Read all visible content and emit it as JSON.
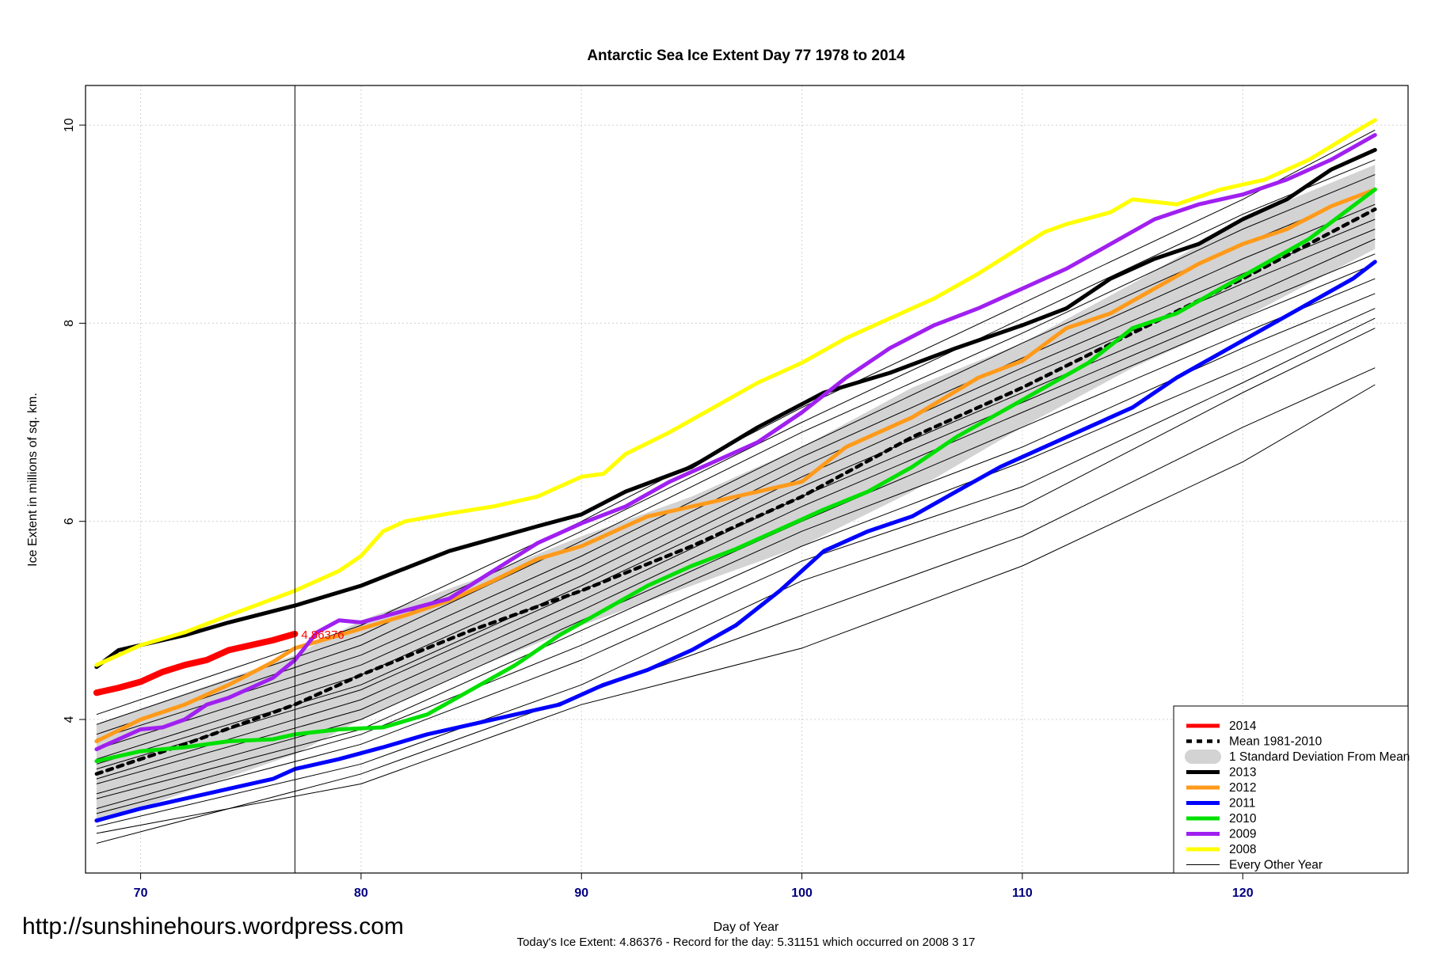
{
  "watermark": "http://sunshinehours.wordpress.com",
  "chart_data": {
    "type": "line",
    "title": "Antarctic Sea Ice Extent Day 77 1978 to 2014",
    "xlabel": "Day of Year",
    "ylabel": "Ice Extent in millions of sq. km.",
    "xlim": [
      67.5,
      127.5
    ],
    "ylim": [
      2.45,
      10.4
    ],
    "xticks": [
      "70",
      "80",
      "90",
      "100",
      "110",
      "120"
    ],
    "yticks": [
      "4",
      "6",
      "8",
      "10"
    ],
    "grid": true,
    "legend_position": "bottom-right",
    "current_day_marker": 77,
    "today_label": "4.86376",
    "footnote": "Today's Ice Extent: 4.86376  - Record for the day: 5.31151 which occurred on 2008 3 17",
    "legend": [
      {
        "label": "2014",
        "color": "#ff0000",
        "style": "thick"
      },
      {
        "label": "Mean 1981-2010",
        "color": "#000000",
        "style": "dashed"
      },
      {
        "label": "1 Standard Deviation From Mean",
        "color": "#d3d3d3",
        "style": "band"
      },
      {
        "label": "2013",
        "color": "#000000",
        "style": "thick"
      },
      {
        "label": "2012",
        "color": "#ff9a1a",
        "style": "thick"
      },
      {
        "label": "2011",
        "color": "#0000ff",
        "style": "thick"
      },
      {
        "label": "2010",
        "color": "#00e000",
        "style": "thick"
      },
      {
        "label": "2009",
        "color": "#a020f0",
        "style": "thick"
      },
      {
        "label": "2008",
        "color": "#ffff00",
        "style": "thick"
      },
      {
        "label": "Every Other Year",
        "color": "#000000",
        "style": "thin"
      }
    ],
    "std_band": {
      "x": [
        68,
        77,
        80,
        85,
        90,
        95,
        100,
        105,
        110,
        115,
        120,
        126
      ],
      "lower": [
        2.95,
        3.65,
        4.0,
        4.5,
        4.95,
        5.35,
        5.75,
        6.3,
        6.95,
        7.55,
        8.05,
        8.75
      ],
      "upper": [
        3.95,
        4.65,
        5.0,
        5.4,
        5.85,
        6.25,
        6.75,
        7.35,
        7.8,
        8.4,
        9.05,
        9.6
      ]
    },
    "series": [
      {
        "name": "Mean 1981-2010",
        "color": "#000000",
        "style": "dashed",
        "x": [
          68,
          72,
          77,
          80,
          85,
          90,
          95,
          100,
          105,
          110,
          115,
          120,
          126
        ],
        "y": [
          3.45,
          3.75,
          4.15,
          4.45,
          4.9,
          5.3,
          5.75,
          6.25,
          6.85,
          7.35,
          7.9,
          8.45,
          9.15
        ]
      },
      {
        "name": "2013",
        "color": "#000000",
        "style": "thick",
        "x": [
          68,
          69,
          70,
          72,
          74,
          77,
          80,
          84,
          88,
          90,
          92,
          95,
          98,
          101,
          104,
          107,
          110,
          112,
          114,
          116,
          118,
          120,
          122,
          124,
          126
        ],
        "y": [
          4.53,
          4.7,
          4.75,
          4.85,
          4.98,
          5.15,
          5.35,
          5.7,
          5.95,
          6.07,
          6.3,
          6.55,
          6.95,
          7.3,
          7.5,
          7.75,
          7.98,
          8.15,
          8.45,
          8.65,
          8.8,
          9.05,
          9.25,
          9.55,
          9.75
        ]
      },
      {
        "name": "2012",
        "color": "#ff9a1a",
        "style": "thick",
        "x": [
          68,
          70,
          72,
          74,
          76,
          77,
          79,
          82,
          84,
          86,
          88,
          90,
          93,
          96,
          100,
          102,
          105,
          108,
          110,
          112,
          114,
          116,
          118,
          120,
          122,
          124,
          126
        ],
        "y": [
          3.78,
          4.0,
          4.15,
          4.35,
          4.58,
          4.72,
          4.85,
          5.05,
          5.2,
          5.4,
          5.62,
          5.75,
          6.05,
          6.2,
          6.4,
          6.75,
          7.05,
          7.45,
          7.62,
          7.95,
          8.1,
          8.35,
          8.6,
          8.8,
          8.95,
          9.18,
          9.35
        ]
      },
      {
        "name": "2011",
        "color": "#0000ff",
        "style": "thick",
        "x": [
          68,
          70,
          72,
          74,
          76,
          77,
          79,
          81,
          83,
          85,
          87,
          89,
          91,
          93,
          95,
          97,
          99,
          101,
          103,
          105,
          107,
          109,
          111,
          113,
          115,
          117,
          119,
          121,
          123,
          125,
          126
        ],
        "y": [
          2.98,
          3.1,
          3.2,
          3.3,
          3.4,
          3.5,
          3.6,
          3.72,
          3.85,
          3.95,
          4.05,
          4.15,
          4.35,
          4.5,
          4.7,
          4.95,
          5.3,
          5.7,
          5.9,
          6.05,
          6.3,
          6.55,
          6.75,
          6.95,
          7.15,
          7.45,
          7.7,
          7.95,
          8.2,
          8.45,
          8.62
        ]
      },
      {
        "name": "2010",
        "color": "#00e000",
        "style": "thick",
        "x": [
          68,
          70,
          72,
          74,
          76,
          77,
          79,
          81,
          83,
          85,
          87,
          89,
          91,
          93,
          95,
          97,
          99,
          101,
          103,
          105,
          107,
          109,
          111,
          113,
          115,
          117,
          119,
          121,
          123,
          126
        ],
        "y": [
          3.58,
          3.68,
          3.72,
          3.78,
          3.8,
          3.85,
          3.9,
          3.92,
          4.05,
          4.3,
          4.55,
          4.85,
          5.1,
          5.35,
          5.55,
          5.72,
          5.92,
          6.12,
          6.3,
          6.55,
          6.85,
          7.1,
          7.35,
          7.6,
          7.95,
          8.1,
          8.35,
          8.6,
          8.85,
          9.35
        ]
      },
      {
        "name": "2009",
        "color": "#a020f0",
        "style": "thick",
        "x": [
          68,
          70,
          71,
          72,
          73,
          74,
          75,
          76,
          77,
          78,
          79,
          80,
          82,
          84,
          86,
          88,
          90,
          92,
          94,
          96,
          98,
          100,
          102,
          104,
          106,
          108,
          110,
          112,
          114,
          116,
          118,
          120,
          122,
          124,
          126
        ],
        "y": [
          3.7,
          3.9,
          3.92,
          4.0,
          4.15,
          4.22,
          4.32,
          4.42,
          4.6,
          4.88,
          5.0,
          4.98,
          5.1,
          5.22,
          5.5,
          5.78,
          5.98,
          6.15,
          6.4,
          6.6,
          6.8,
          7.1,
          7.45,
          7.75,
          7.98,
          8.15,
          8.35,
          8.55,
          8.8,
          9.05,
          9.2,
          9.3,
          9.45,
          9.65,
          9.9
        ]
      },
      {
        "name": "2008",
        "color": "#ffff00",
        "style": "thick",
        "x": [
          68,
          70,
          72,
          74,
          77,
          79,
          80,
          81,
          82,
          84,
          86,
          88,
          90,
          91,
          92,
          94,
          96,
          98,
          100,
          102,
          104,
          106,
          108,
          110,
          111,
          112,
          114,
          115,
          117,
          119,
          121,
          123,
          125,
          126
        ],
        "y": [
          4.55,
          4.75,
          4.88,
          5.05,
          5.3,
          5.5,
          5.65,
          5.9,
          6.0,
          6.08,
          6.15,
          6.25,
          6.45,
          6.48,
          6.68,
          6.9,
          7.15,
          7.4,
          7.6,
          7.85,
          8.05,
          8.25,
          8.5,
          8.78,
          8.92,
          9.0,
          9.12,
          9.25,
          9.2,
          9.35,
          9.45,
          9.65,
          9.92,
          10.05
        ]
      },
      {
        "name": "2014",
        "color": "#ff0000",
        "style": "thick",
        "x": [
          68,
          69,
          70,
          71,
          72,
          73,
          74,
          75,
          76,
          77
        ],
        "y": [
          4.27,
          4.32,
          4.38,
          4.48,
          4.55,
          4.6,
          4.7,
          4.75,
          4.8,
          4.86376
        ]
      }
    ],
    "other_years": [
      {
        "x": [
          68,
          80,
          90,
          100,
          110,
          120,
          126
        ],
        "y": [
          2.85,
          3.35,
          4.15,
          4.72,
          5.55,
          6.6,
          7.38
        ]
      },
      {
        "x": [
          68,
          80,
          90,
          100,
          110,
          120,
          126
        ],
        "y": [
          2.75,
          3.45,
          4.25,
          5.05,
          5.85,
          6.95,
          7.55
        ]
      },
      {
        "x": [
          68,
          80,
          90,
          100,
          110,
          120,
          126
        ],
        "y": [
          2.92,
          3.55,
          4.35,
          5.4,
          6.15,
          7.3,
          7.95
        ]
      },
      {
        "x": [
          68,
          80,
          90,
          100,
          110,
          120,
          126
        ],
        "y": [
          3.05,
          3.75,
          4.6,
          5.6,
          6.35,
          7.4,
          8.05
        ]
      },
      {
        "x": [
          68,
          80,
          90,
          100,
          110,
          120,
          126
        ],
        "y": [
          3.1,
          3.85,
          4.75,
          5.75,
          6.6,
          7.55,
          8.15
        ]
      },
      {
        "x": [
          68,
          80,
          90,
          100,
          110,
          120,
          126
        ],
        "y": [
          3.2,
          3.9,
          4.9,
          5.9,
          6.75,
          7.75,
          8.3
        ]
      },
      {
        "x": [
          68,
          80,
          90,
          100,
          110,
          120,
          126
        ],
        "y": [
          3.25,
          4.0,
          5.0,
          6.0,
          6.95,
          7.9,
          8.45
        ]
      },
      {
        "x": [
          68,
          80,
          90,
          100,
          110,
          120,
          126
        ],
        "y": [
          3.35,
          4.1,
          5.1,
          6.15,
          7.1,
          8.05,
          8.6
        ]
      },
      {
        "x": [
          68,
          80,
          90,
          100,
          110,
          120,
          126
        ],
        "y": [
          3.4,
          4.2,
          5.2,
          6.25,
          7.2,
          8.15,
          8.7
        ]
      },
      {
        "x": [
          68,
          80,
          90,
          100,
          110,
          120,
          126
        ],
        "y": [
          3.5,
          4.3,
          5.3,
          6.35,
          7.3,
          8.25,
          8.85
        ]
      },
      {
        "x": [
          68,
          80,
          90,
          100,
          110,
          120,
          126
        ],
        "y": [
          3.55,
          4.35,
          5.35,
          6.45,
          7.45,
          8.4,
          8.95
        ]
      },
      {
        "x": [
          68,
          80,
          90,
          100,
          110,
          120,
          126
        ],
        "y": [
          3.6,
          4.45,
          5.45,
          6.55,
          7.55,
          8.5,
          9.05
        ]
      },
      {
        "x": [
          68,
          80,
          90,
          100,
          110,
          120,
          126
        ],
        "y": [
          3.7,
          4.55,
          5.55,
          6.65,
          7.65,
          8.65,
          9.2
        ]
      },
      {
        "x": [
          68,
          80,
          90,
          100,
          110,
          120,
          126
        ],
        "y": [
          3.8,
          4.65,
          5.65,
          6.75,
          7.8,
          8.8,
          9.35
        ]
      },
      {
        "x": [
          68,
          80,
          90,
          100,
          110,
          120,
          126
        ],
        "y": [
          3.85,
          4.75,
          5.8,
          6.9,
          7.9,
          8.95,
          9.5
        ]
      },
      {
        "x": [
          68,
          80,
          90,
          100,
          110,
          120,
          126
        ],
        "y": [
          3.95,
          4.85,
          5.9,
          7.0,
          8.05,
          9.1,
          9.65
        ]
      },
      {
        "x": [
          68,
          80,
          90,
          100,
          110,
          120,
          126
        ],
        "y": [
          4.05,
          4.95,
          6.0,
          7.15,
          8.2,
          9.25,
          9.95
        ]
      }
    ]
  }
}
